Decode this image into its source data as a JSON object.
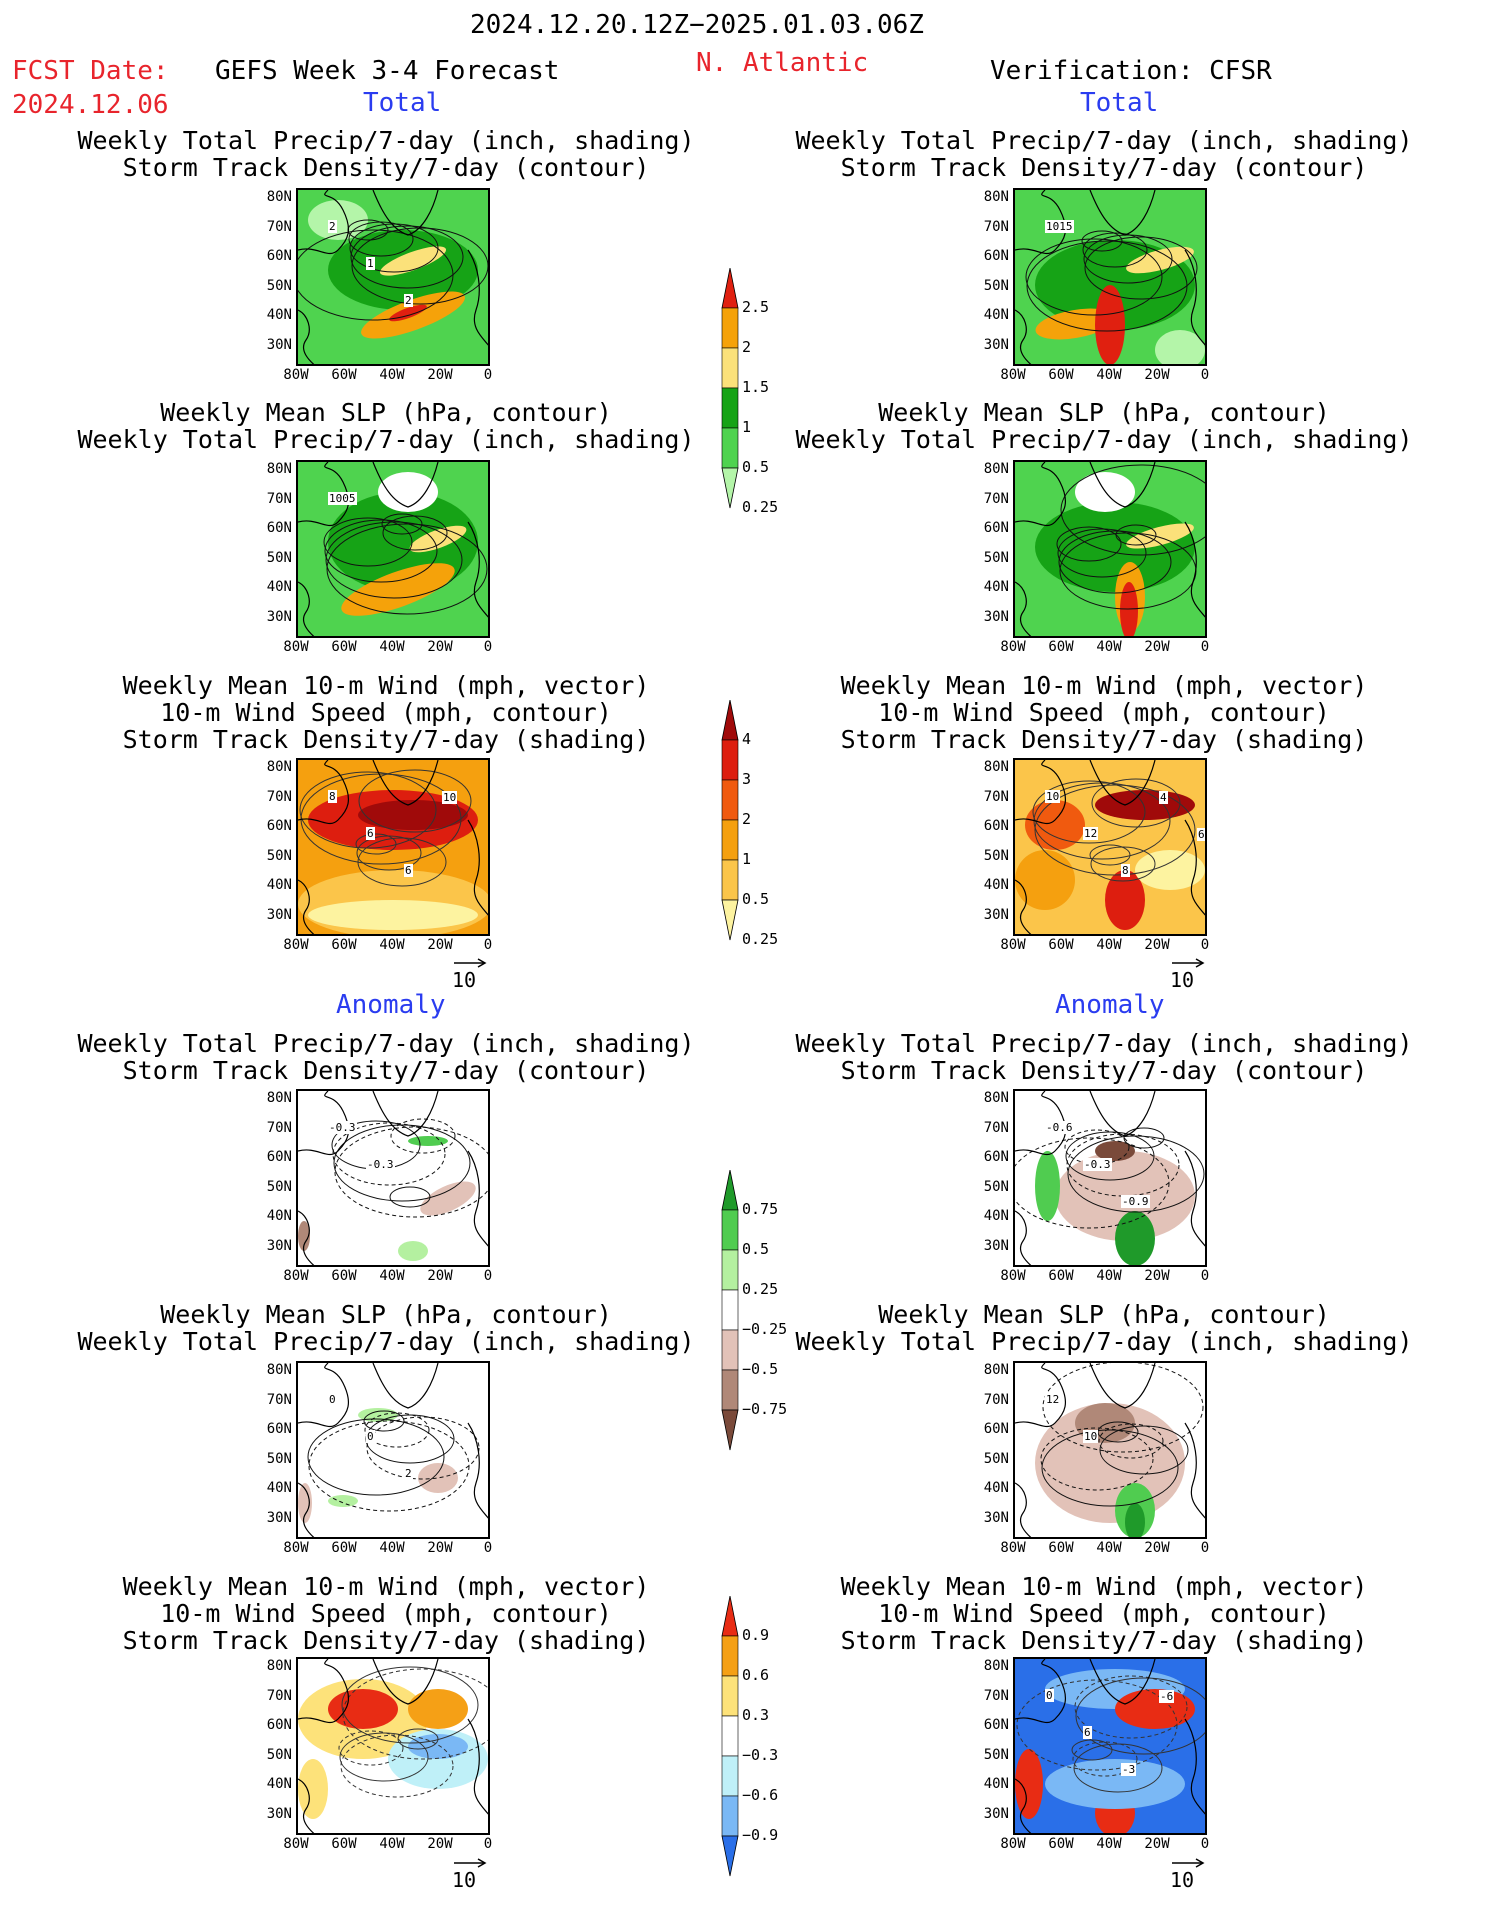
{
  "header": {
    "date_range": "2024.12.20.12Z−2025.01.03.06Z",
    "fcst_label": "FCST Date:",
    "fcst_date": "2024.12.06",
    "forecast_title": "GEFS Week 3-4 Forecast",
    "region": "N. Atlantic",
    "verification": "Verification: CFSR"
  },
  "sections": {
    "total": "Total",
    "anomaly": "Anomaly"
  },
  "titles": {
    "precip_track": [
      "Weekly Total Precip/7-day (inch, shading)",
      "Storm Track Density/7-day (contour)"
    ],
    "slp_precip": [
      "Weekly Mean SLP (hPa, contour)",
      "Weekly Total Precip/7-day (inch, shading)"
    ],
    "wind_track": [
      "Weekly Mean 10-m Wind (mph, vector)",
      "10-m Wind Speed (mph, contour)",
      "Storm Track Density/7-day (shading)"
    ]
  },
  "axes": {
    "lat": [
      "80N",
      "70N",
      "60N",
      "50N",
      "40N",
      "30N"
    ],
    "lon": [
      "80W",
      "60W",
      "40W",
      "20W",
      "0"
    ]
  },
  "vector_ref": "10",
  "contour_labels": {
    "p1": [
      "2",
      "1",
      "2"
    ],
    "p2": [
      "1015"
    ],
    "p3": [
      "1005"
    ],
    "p5": [
      "8",
      "6",
      "6",
      "10"
    ],
    "p6": [
      "10",
      "12",
      "8",
      "4",
      "6"
    ],
    "p7": [
      "-0.3",
      "-0.3"
    ],
    "p8": [
      "-0.6",
      "-0.3",
      "-0.9"
    ],
    "p9": [
      "0",
      "0",
      "2"
    ],
    "p10": [
      "12",
      "10"
    ],
    "p12": [
      "0",
      "6",
      "-3",
      "-6"
    ]
  },
  "colorbars": [
    {
      "name": "precip-total",
      "labels": [
        "2.5",
        "2",
        "1.5",
        "1",
        "0.5",
        "0.25"
      ],
      "colors": [
        "#e02010",
        "#f5a20a",
        "#fbe17a",
        "#16a316",
        "#4fd34f",
        "#b4f5a9"
      ]
    },
    {
      "name": "track-total",
      "labels": [
        "4",
        "3",
        "2",
        "1",
        "0.5",
        "0.25"
      ],
      "colors": [
        "#a00a0a",
        "#dd1e0f",
        "#f05a0f",
        "#f5a00f",
        "#fbc54a",
        "#fdf3a0"
      ]
    },
    {
      "name": "precip-anom",
      "labels": [
        "0.75",
        "0.5",
        "0.25",
        "−0.25",
        "−0.5",
        "−0.75"
      ],
      "colors": [
        "#1f9a2a",
        "#50cc50",
        "#b4f0a0",
        "#ffffff",
        "#e2c2b8",
        "#b08878",
        "#7a4a3a"
      ]
    },
    {
      "name": "track-anom",
      "labels": [
        "0.9",
        "0.6",
        "0.3",
        "−0.3",
        "−0.6",
        "−0.9"
      ],
      "colors": [
        "#e82c14",
        "#f5a016",
        "#fde27a",
        "#ffffff",
        "#bff0f8",
        "#7ab8f5",
        "#2a6fe8"
      ]
    }
  ]
}
